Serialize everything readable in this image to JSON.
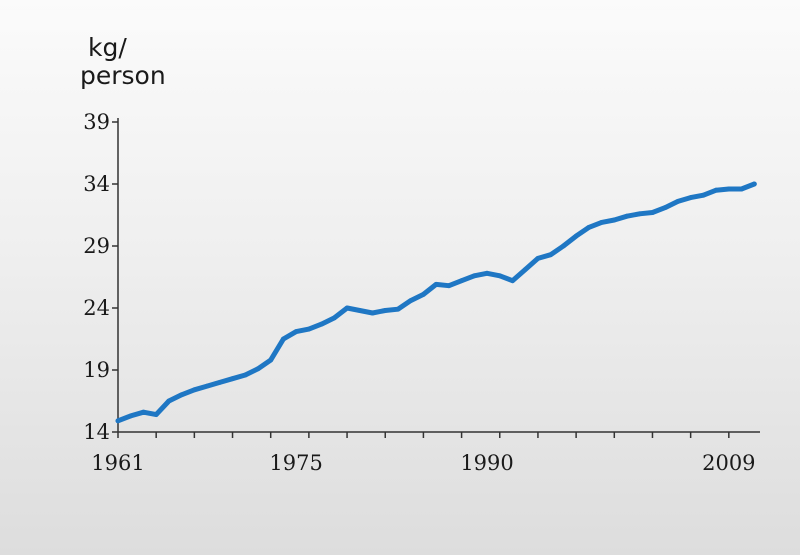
{
  "chart_data": {
    "type": "line",
    "ylabel_line1": "kg/",
    "ylabel_line2": "person",
    "xlabel": "",
    "xlim": [
      1961,
      2012
    ],
    "ylim": [
      14,
      39
    ],
    "yticks": [
      14,
      19,
      24,
      29,
      34,
      39
    ],
    "xticks_labeled": [
      1961,
      1975,
      1990,
      2009
    ],
    "xticks_minor": [
      1961,
      1964,
      1967,
      1970,
      1973,
      1976,
      1979,
      1982,
      1985,
      1988,
      1991,
      1994,
      1997,
      2000,
      2003,
      2006,
      2009
    ],
    "grid": false,
    "line_color": "#1f77c4",
    "series": [
      {
        "x": [
          1961,
          1962,
          1963,
          1964,
          1965,
          1966,
          1967,
          1968,
          1969,
          1970,
          1971,
          1972,
          1973,
          1974,
          1975,
          1976,
          1977,
          1978,
          1979,
          1980,
          1981,
          1982,
          1983,
          1984,
          1985,
          1986,
          1987,
          1988,
          1989,
          1990,
          1991,
          1992,
          1993,
          1994,
          1995,
          1996,
          1997,
          1998,
          1999,
          2000,
          2001,
          2002,
          2003,
          2004,
          2005,
          2006,
          2007,
          2008,
          2009,
          2010,
          2011
        ],
        "values": [
          14.9,
          15.3,
          15.6,
          15.4,
          16.5,
          17.0,
          17.4,
          17.7,
          18.0,
          18.3,
          18.6,
          19.1,
          19.8,
          21.5,
          22.1,
          22.3,
          22.7,
          23.2,
          24.0,
          23.8,
          23.6,
          23.8,
          23.9,
          24.6,
          25.1,
          25.9,
          25.8,
          26.2,
          26.6,
          26.8,
          26.6,
          26.2,
          27.1,
          28.0,
          28.3,
          29.0,
          29.8,
          30.5,
          30.9,
          31.1,
          31.4,
          31.6,
          31.7,
          32.1,
          32.6,
          32.9,
          33.1,
          33.5,
          33.6,
          33.6,
          34.0
        ]
      }
    ]
  }
}
